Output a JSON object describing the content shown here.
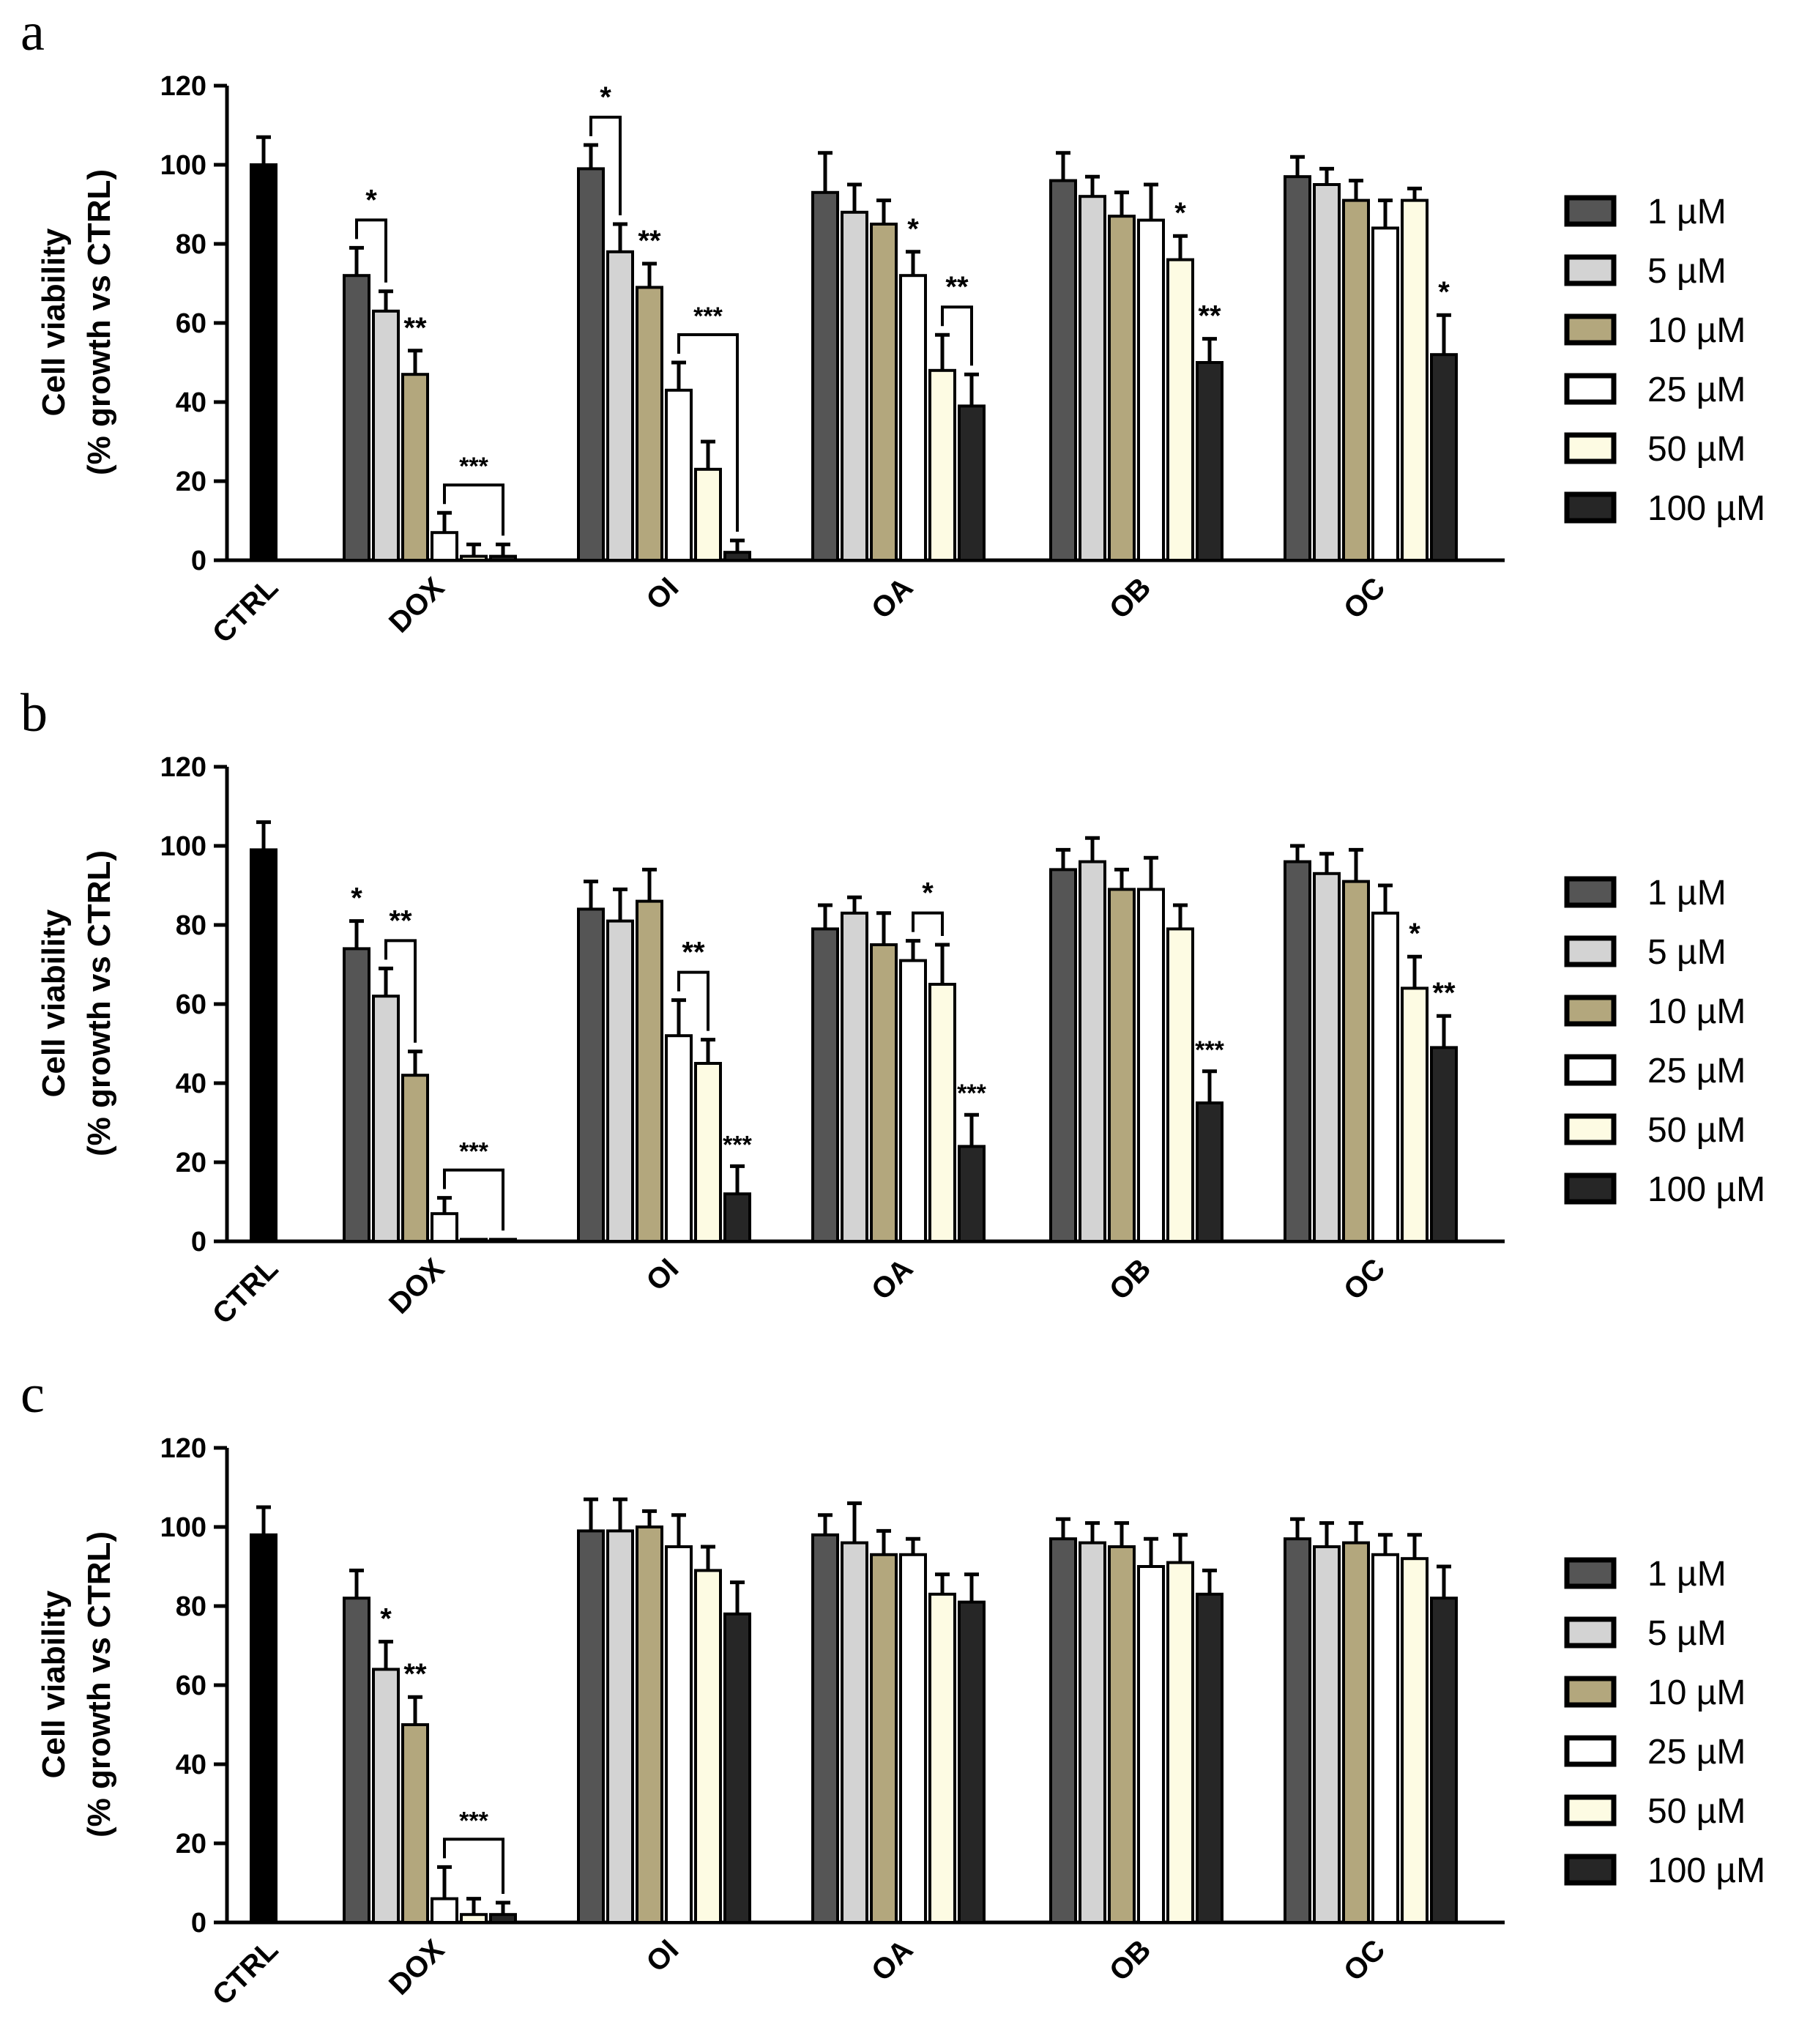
{
  "figure": {
    "series_colors": [
      "#555555",
      "#d3d3d3",
      "#b3a77d",
      "#ffffff",
      "#fdfbe3",
      "#262626"
    ],
    "ctrl_color": "#000000"
  },
  "chart_data": [
    {
      "panel": "a",
      "type": "bar",
      "ylabel": [
        "Cell viability",
        "(% growth vs CTRL)"
      ],
      "ylim": [
        0,
        120
      ],
      "yticks": [
        0,
        20,
        40,
        60,
        80,
        100,
        120
      ],
      "categories": [
        "CTRL",
        "DOX",
        "OI",
        "OA",
        "OB",
        "OC"
      ],
      "ctrl": {
        "value": 100,
        "err": 7
      },
      "series": [
        {
          "name": "1 µM",
          "values": [
            null,
            72,
            99,
            93,
            96,
            97
          ],
          "errors": [
            null,
            7,
            6,
            10,
            7,
            5
          ]
        },
        {
          "name": "5 µM",
          "values": [
            null,
            63,
            78,
            88,
            92,
            95
          ],
          "errors": [
            null,
            5,
            7,
            7,
            5,
            4
          ]
        },
        {
          "name": "10 µM",
          "values": [
            null,
            47,
            69,
            85,
            87,
            91
          ],
          "errors": [
            null,
            6,
            6,
            6,
            6,
            5
          ]
        },
        {
          "name": "25 µM",
          "values": [
            null,
            7,
            43,
            72,
            86,
            84
          ],
          "errors": [
            null,
            5,
            7,
            6,
            9,
            7
          ]
        },
        {
          "name": "50 µM",
          "values": [
            null,
            1,
            23,
            48,
            76,
            91
          ],
          "errors": [
            null,
            3,
            7,
            9,
            6,
            3
          ]
        },
        {
          "name": "100 µM",
          "values": [
            null,
            1,
            2,
            39,
            50,
            52
          ],
          "errors": [
            null,
            3,
            3,
            8,
            6,
            10
          ]
        }
      ],
      "annotations": [
        {
          "text": "*",
          "type": "bracket",
          "group": 1,
          "from": 0,
          "to": 1
        },
        {
          "text": "**",
          "type": "label",
          "group": 1,
          "bar": 2
        },
        {
          "text": "***",
          "type": "bracket",
          "group": 1,
          "from": 3,
          "to": 5
        },
        {
          "text": "*",
          "type": "bracket",
          "group": 2,
          "from": 0,
          "to": 1
        },
        {
          "text": "**",
          "type": "label",
          "group": 2,
          "bar": 2
        },
        {
          "text": "***",
          "type": "bracket",
          "group": 2,
          "from": 3,
          "to": 5
        },
        {
          "text": "*",
          "type": "label",
          "group": 3,
          "bar": 3
        },
        {
          "text": "**",
          "type": "bracket",
          "group": 3,
          "from": 4,
          "to": 5
        },
        {
          "text": "*",
          "type": "label",
          "group": 4,
          "bar": 4
        },
        {
          "text": "**",
          "type": "label",
          "group": 4,
          "bar": 5
        },
        {
          "text": "*",
          "type": "label",
          "group": 5,
          "bar": 5
        }
      ]
    },
    {
      "panel": "b",
      "type": "bar",
      "ylabel": [
        "Cell viability",
        "(% growth vs CTRL)"
      ],
      "ylim": [
        0,
        120
      ],
      "yticks": [
        0,
        20,
        40,
        60,
        80,
        100,
        120
      ],
      "categories": [
        "CTRL",
        "DOX",
        "OI",
        "OA",
        "OB",
        "OC"
      ],
      "ctrl": {
        "value": 99,
        "err": 7
      },
      "series": [
        {
          "name": "1 µM",
          "values": [
            null,
            74,
            84,
            79,
            94,
            96
          ],
          "errors": [
            null,
            7,
            7,
            6,
            5,
            4
          ]
        },
        {
          "name": "5 µM",
          "values": [
            null,
            62,
            81,
            83,
            96,
            93
          ],
          "errors": [
            null,
            7,
            8,
            4,
            6,
            5
          ]
        },
        {
          "name": "10 µM",
          "values": [
            null,
            42,
            86,
            75,
            89,
            91
          ],
          "errors": [
            null,
            6,
            8,
            8,
            5,
            8
          ]
        },
        {
          "name": "25 µM",
          "values": [
            null,
            7,
            52,
            71,
            89,
            83
          ],
          "errors": [
            null,
            4,
            9,
            5,
            8,
            7
          ]
        },
        {
          "name": "50 µM",
          "values": [
            null,
            0.5,
            45,
            65,
            79,
            64
          ],
          "errors": [
            null,
            0,
            6,
            10,
            6,
            8
          ]
        },
        {
          "name": "100 µM",
          "values": [
            null,
            0.5,
            12,
            24,
            35,
            49
          ],
          "errors": [
            null,
            0,
            7,
            8,
            8,
            8
          ]
        }
      ],
      "annotations": [
        {
          "text": "*",
          "type": "label",
          "group": 1,
          "bar": 0
        },
        {
          "text": "**",
          "type": "bracket",
          "group": 1,
          "from": 1,
          "to": 2
        },
        {
          "text": "***",
          "type": "bracket",
          "group": 1,
          "from": 3,
          "to": 5
        },
        {
          "text": "**",
          "type": "bracket",
          "group": 2,
          "from": 3,
          "to": 4
        },
        {
          "text": "***",
          "type": "label",
          "group": 2,
          "bar": 5
        },
        {
          "text": "*",
          "type": "bracket",
          "group": 3,
          "from": 3,
          "to": 4
        },
        {
          "text": "***",
          "type": "label",
          "group": 3,
          "bar": 5
        },
        {
          "text": "***",
          "type": "label",
          "group": 4,
          "bar": 5
        },
        {
          "text": "*",
          "type": "label",
          "group": 5,
          "bar": 4
        },
        {
          "text": "**",
          "type": "label",
          "group": 5,
          "bar": 5
        }
      ]
    },
    {
      "panel": "c",
      "type": "bar",
      "ylabel": [
        "Cell viability",
        "(% growth vs CTRL)"
      ],
      "ylim": [
        0,
        120
      ],
      "yticks": [
        0,
        20,
        40,
        60,
        80,
        100,
        120
      ],
      "categories": [
        "CTRL",
        "DOX",
        "OI",
        "OA",
        "OB",
        "OC"
      ],
      "ctrl": {
        "value": 98,
        "err": 7
      },
      "series": [
        {
          "name": "1 µM",
          "values": [
            null,
            82,
            99,
            98,
            97,
            97
          ],
          "errors": [
            null,
            7,
            8,
            5,
            5,
            5
          ]
        },
        {
          "name": "5 µM",
          "values": [
            null,
            64,
            99,
            96,
            96,
            95
          ],
          "errors": [
            null,
            7,
            8,
            10,
            5,
            6
          ]
        },
        {
          "name": "10 µM",
          "values": [
            null,
            50,
            100,
            93,
            95,
            96
          ],
          "errors": [
            null,
            7,
            4,
            6,
            6,
            5
          ]
        },
        {
          "name": "25 µM",
          "values": [
            null,
            6,
            95,
            93,
            90,
            93
          ],
          "errors": [
            null,
            8,
            8,
            4,
            7,
            5
          ]
        },
        {
          "name": "50 µM",
          "values": [
            null,
            2,
            89,
            83,
            91,
            92
          ],
          "errors": [
            null,
            4,
            6,
            5,
            7,
            6
          ]
        },
        {
          "name": "100 µM",
          "values": [
            null,
            2,
            78,
            81,
            83,
            82
          ],
          "errors": [
            null,
            3,
            8,
            7,
            6,
            8
          ]
        }
      ],
      "annotations": [
        {
          "text": "*",
          "type": "label",
          "group": 1,
          "bar": 1
        },
        {
          "text": "**",
          "type": "label",
          "group": 1,
          "bar": 2
        },
        {
          "text": "***",
          "type": "bracket",
          "group": 1,
          "from": 3,
          "to": 5
        }
      ]
    }
  ]
}
